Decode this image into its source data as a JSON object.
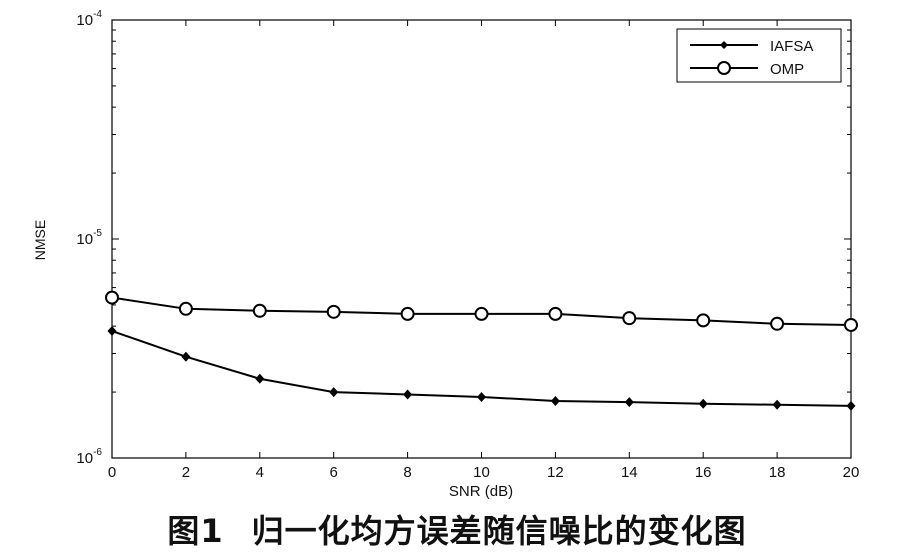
{
  "chart_data": {
    "type": "line",
    "xlabel": "SNR (dB)",
    "ylabel": "NMSE",
    "y_scale": "log",
    "xlim": [
      0,
      20
    ],
    "ylim": [
      1e-06,
      0.0001
    ],
    "x_ticks": [
      0,
      2,
      4,
      6,
      8,
      10,
      12,
      14,
      16,
      18,
      20
    ],
    "y_ticks": [
      {
        "value": 0.0001,
        "base": "10",
        "exp": "-4"
      },
      {
        "value": 1e-05,
        "base": "10",
        "exp": "-5"
      },
      {
        "value": 1e-06,
        "base": "10",
        "exp": "-6"
      }
    ],
    "grid": false,
    "legend_position": "top-right",
    "x": [
      0,
      2,
      4,
      6,
      8,
      10,
      12,
      14,
      16,
      18,
      20
    ],
    "series": [
      {
        "name": "IAFSA",
        "marker": "filled-diamond",
        "values": [
          3.8e-06,
          2.9e-06,
          2.3e-06,
          2e-06,
          1.95e-06,
          1.9e-06,
          1.82e-06,
          1.8e-06,
          1.77e-06,
          1.75e-06,
          1.73e-06
        ]
      },
      {
        "name": "OMP",
        "marker": "open-circle",
        "values": [
          5.4e-06,
          4.8e-06,
          4.7e-06,
          4.65e-06,
          4.55e-06,
          4.55e-06,
          4.55e-06,
          4.35e-06,
          4.25e-06,
          4.1e-06,
          4.05e-06
        ]
      }
    ]
  },
  "caption": {
    "figure_number": "图1",
    "text": "归一化均方误差随信噪比的变化图"
  }
}
